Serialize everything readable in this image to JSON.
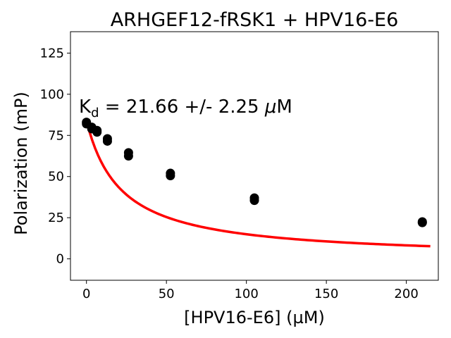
{
  "chart_data": {
    "type": "scatter",
    "title": "ARHGEF12-fRSK1 + HPV16-E6",
    "xlabel": "[HPV16-E6] (µM)",
    "ylabel": "Polarization (mP)",
    "xlim": [
      -10,
      220
    ],
    "ylim": [
      -13,
      138
    ],
    "xticks": [
      0,
      50,
      100,
      150,
      200
    ],
    "yticks": [
      0,
      25,
      50,
      75,
      100,
      125
    ],
    "grid": false,
    "annotation": {
      "prefix": "K",
      "subscript": "d",
      "rest": " = 21.66 +/- 2.25 ",
      "unit_mu": "μ",
      "unit": "M"
    },
    "series": [
      {
        "type": "scatter",
        "color": "#000000",
        "points": [
          {
            "x": 0,
            "y": 83
          },
          {
            "x": 0,
            "y": 82
          },
          {
            "x": 3.3,
            "y": 80
          },
          {
            "x": 3.3,
            "y": 79
          },
          {
            "x": 6.6,
            "y": 78
          },
          {
            "x": 6.6,
            "y": 77
          },
          {
            "x": 13.1,
            "y": 73
          },
          {
            "x": 13.1,
            "y": 71.5
          },
          {
            "x": 26.3,
            "y": 64.5
          },
          {
            "x": 26.3,
            "y": 62.5
          },
          {
            "x": 52.5,
            "y": 52
          },
          {
            "x": 52.5,
            "y": 50.5
          },
          {
            "x": 105,
            "y": 37
          },
          {
            "x": 105,
            "y": 35.5
          },
          {
            "x": 210,
            "y": 22.5
          },
          {
            "x": 210,
            "y": 22
          }
        ]
      },
      {
        "type": "line",
        "color": "#ff0000",
        "fit": {
          "kd": 21.66,
          "top": 84,
          "bottom": 0,
          "x_range": [
            0,
            215
          ]
        }
      }
    ]
  }
}
